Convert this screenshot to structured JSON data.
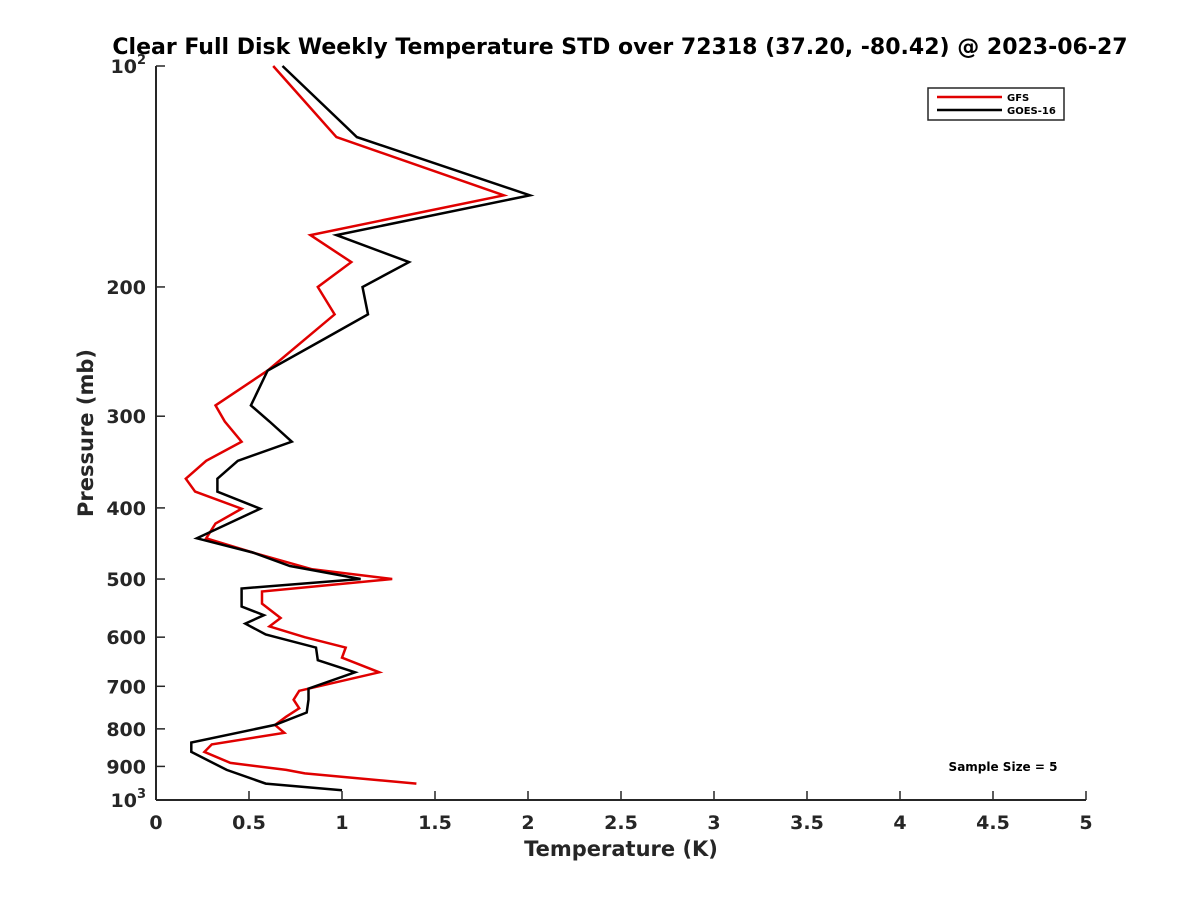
{
  "chart_data": {
    "type": "line",
    "title": "Clear Full Disk Weekly Temperature STD over 72318 (37.20, -80.42) @ 2023-06-27",
    "xlabel": "Temperature (K)",
    "ylabel": "Pressure (mb)",
    "xlim": [
      0,
      5
    ],
    "ylim": [
      1000,
      100
    ],
    "yscale": "log",
    "y_reversed": true,
    "xticks": [
      0,
      0.5,
      1,
      1.5,
      2,
      2.5,
      3,
      3.5,
      4,
      4.5,
      5
    ],
    "xtick_labels": [
      "0",
      "0.5",
      "1",
      "1.5",
      "2",
      "2.5",
      "3",
      "3.5",
      "4",
      "4.5",
      "5"
    ],
    "yticks": [
      {
        "value": 100,
        "base": "10",
        "exp": "2"
      },
      {
        "value": 200,
        "label": "200"
      },
      {
        "value": 300,
        "label": "300"
      },
      {
        "value": 400,
        "label": "400"
      },
      {
        "value": 500,
        "label": "500"
      },
      {
        "value": 600,
        "label": "600"
      },
      {
        "value": 700,
        "label": "700"
      },
      {
        "value": 800,
        "label": "800"
      },
      {
        "value": 900,
        "label": "900"
      },
      {
        "value": 1000,
        "base": "10",
        "exp": "3"
      }
    ],
    "legend_position": "top-right",
    "grid": false,
    "annotation": "Sample Size = 5",
    "series": [
      {
        "name": "GFS",
        "color": "#e00000",
        "points": [
          {
            "x": 0.63,
            "y": 100
          },
          {
            "x": 0.97,
            "y": 125
          },
          {
            "x": 1.87,
            "y": 150
          },
          {
            "x": 0.83,
            "y": 170
          },
          {
            "x": 1.05,
            "y": 185
          },
          {
            "x": 0.87,
            "y": 200
          },
          {
            "x": 0.96,
            "y": 218
          },
          {
            "x": 0.6,
            "y": 260
          },
          {
            "x": 0.32,
            "y": 290
          },
          {
            "x": 0.37,
            "y": 305
          },
          {
            "x": 0.46,
            "y": 325
          },
          {
            "x": 0.27,
            "y": 345
          },
          {
            "x": 0.16,
            "y": 365
          },
          {
            "x": 0.21,
            "y": 380
          },
          {
            "x": 0.46,
            "y": 401
          },
          {
            "x": 0.32,
            "y": 420
          },
          {
            "x": 0.27,
            "y": 440
          },
          {
            "x": 0.52,
            "y": 460
          },
          {
            "x": 0.84,
            "y": 485
          },
          {
            "x": 1.27,
            "y": 500
          },
          {
            "x": 0.57,
            "y": 520
          },
          {
            "x": 0.57,
            "y": 540
          },
          {
            "x": 0.67,
            "y": 565
          },
          {
            "x": 0.61,
            "y": 580
          },
          {
            "x": 0.8,
            "y": 600
          },
          {
            "x": 1.02,
            "y": 620
          },
          {
            "x": 1.0,
            "y": 640
          },
          {
            "x": 1.2,
            "y": 670
          },
          {
            "x": 0.77,
            "y": 710
          },
          {
            "x": 0.74,
            "y": 730
          },
          {
            "x": 0.77,
            "y": 750
          },
          {
            "x": 0.7,
            "y": 770
          },
          {
            "x": 0.64,
            "y": 790
          },
          {
            "x": 0.69,
            "y": 810
          },
          {
            "x": 0.3,
            "y": 840
          },
          {
            "x": 0.26,
            "y": 860
          },
          {
            "x": 0.4,
            "y": 890
          },
          {
            "x": 0.7,
            "y": 910
          },
          {
            "x": 0.8,
            "y": 920
          },
          {
            "x": 1.4,
            "y": 950
          }
        ]
      },
      {
        "name": "GOES-16",
        "color": "#000000",
        "points": [
          {
            "x": 0.68,
            "y": 100
          },
          {
            "x": 1.08,
            "y": 125
          },
          {
            "x": 2.01,
            "y": 150
          },
          {
            "x": 0.97,
            "y": 170
          },
          {
            "x": 1.36,
            "y": 185
          },
          {
            "x": 1.11,
            "y": 200
          },
          {
            "x": 1.14,
            "y": 218
          },
          {
            "x": 0.91,
            "y": 235
          },
          {
            "x": 0.6,
            "y": 260
          },
          {
            "x": 0.51,
            "y": 290
          },
          {
            "x": 0.61,
            "y": 305
          },
          {
            "x": 0.73,
            "y": 325
          },
          {
            "x": 0.44,
            "y": 345
          },
          {
            "x": 0.33,
            "y": 365
          },
          {
            "x": 0.33,
            "y": 380
          },
          {
            "x": 0.56,
            "y": 401
          },
          {
            "x": 0.22,
            "y": 440
          },
          {
            "x": 0.52,
            "y": 460
          },
          {
            "x": 0.72,
            "y": 480
          },
          {
            "x": 1.1,
            "y": 500
          },
          {
            "x": 0.46,
            "y": 515
          },
          {
            "x": 0.46,
            "y": 545
          },
          {
            "x": 0.58,
            "y": 560
          },
          {
            "x": 0.48,
            "y": 575
          },
          {
            "x": 0.59,
            "y": 595
          },
          {
            "x": 0.86,
            "y": 620
          },
          {
            "x": 0.87,
            "y": 645
          },
          {
            "x": 1.07,
            "y": 670
          },
          {
            "x": 0.82,
            "y": 705
          },
          {
            "x": 0.82,
            "y": 730
          },
          {
            "x": 0.81,
            "y": 760
          },
          {
            "x": 0.64,
            "y": 790
          },
          {
            "x": 0.19,
            "y": 835
          },
          {
            "x": 0.19,
            "y": 860
          },
          {
            "x": 0.38,
            "y": 910
          },
          {
            "x": 0.59,
            "y": 950
          },
          {
            "x": 1.0,
            "y": 970
          }
        ]
      }
    ]
  }
}
